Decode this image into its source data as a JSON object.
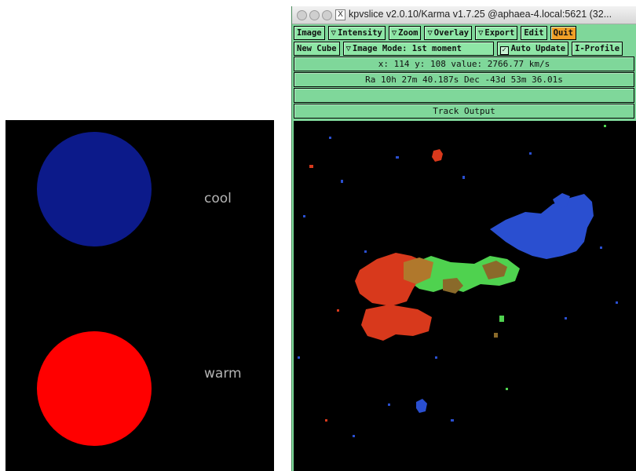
{
  "legend": {
    "cool_label": "cool",
    "warm_label": "warm",
    "cool_color": "#0c1a8a",
    "warm_color": "#ff0000"
  },
  "window": {
    "title": "kpvslice v2.0.10/Karma v1.7.25 @aphaea-4.local:5621 (32...",
    "traffic_lights": [
      "close-icon",
      "minimize-icon",
      "zoom-icon"
    ],
    "x11_icon": "X",
    "menu": {
      "image": "Image",
      "intensity": "Intensity",
      "zoom": "Zoom",
      "overlay": "Overlay",
      "export": "Export",
      "edit": "Edit",
      "quit": "Quit"
    },
    "toolbar": {
      "new_cube": "New Cube",
      "image_mode": "Image Mode: 1st moment",
      "auto_update": "Auto Update",
      "auto_update_checked": true,
      "i_profile": "I-Profile"
    },
    "readout": "x: 114  y: 108  value: 2766.77 km/s",
    "coords": "Ra 10h 27m 40.187s  Dec -43d 53m 36.01s",
    "blank_field": "",
    "track_output": "Track Output",
    "triangle_glyph": "▽",
    "check_glyph": "✓"
  },
  "colors": {
    "panel_green": "#7fd79a",
    "button_green": "#8ee6a6",
    "quit_orange": "#f0a028",
    "map_red": "#d8391c",
    "map_blue": "#2a4fd0",
    "map_green": "#4fd24f",
    "map_brown": "#8a6a2a"
  }
}
